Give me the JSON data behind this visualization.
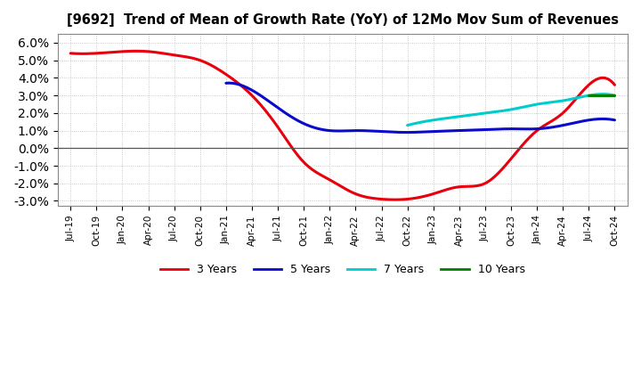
{
  "title": "[9692]  Trend of Mean of Growth Rate (YoY) of 12Mo Mov Sum of Revenues",
  "ylim": [
    -0.033,
    0.065
  ],
  "yticks": [
    -0.03,
    -0.02,
    -0.01,
    0.0,
    0.01,
    0.02,
    0.03,
    0.04,
    0.05,
    0.06
  ],
  "background_color": "#ffffff",
  "grid_color": "#bbbbbb",
  "series": {
    "3 Years": {
      "color": "#e8000d",
      "linewidth": 2.2,
      "data": [
        [
          0,
          0.054
        ],
        [
          1,
          0.054
        ],
        [
          2,
          0.055
        ],
        [
          3,
          0.055
        ],
        [
          4,
          0.053
        ],
        [
          5,
          0.05
        ],
        [
          6,
          0.042
        ],
        [
          7,
          0.03
        ],
        [
          8,
          0.012
        ],
        [
          9,
          -0.008
        ],
        [
          10,
          -0.018
        ],
        [
          11,
          -0.026
        ],
        [
          12,
          -0.029
        ],
        [
          13,
          -0.029
        ],
        [
          14,
          -0.026
        ],
        [
          15,
          -0.022
        ],
        [
          16,
          -0.02
        ],
        [
          17,
          -0.006
        ],
        [
          18,
          0.01
        ],
        [
          19,
          0.02
        ],
        [
          20,
          0.036
        ],
        [
          21,
          0.036
        ]
      ]
    },
    "5 Years": {
      "color": "#0a0acc",
      "linewidth": 2.2,
      "data": [
        [
          6,
          0.037
        ],
        [
          7,
          0.033
        ],
        [
          8,
          0.023
        ],
        [
          9,
          0.014
        ],
        [
          10,
          0.01
        ],
        [
          11,
          0.01
        ],
        [
          12,
          0.0095
        ],
        [
          13,
          0.009
        ],
        [
          14,
          0.0095
        ],
        [
          15,
          0.01
        ],
        [
          16,
          0.0105
        ],
        [
          17,
          0.011
        ],
        [
          18,
          0.011
        ],
        [
          19,
          0.013
        ],
        [
          20,
          0.016
        ],
        [
          21,
          0.016
        ]
      ]
    },
    "7 Years": {
      "color": "#00cccc",
      "linewidth": 2.2,
      "data": [
        [
          13,
          0.013
        ],
        [
          14,
          0.016
        ],
        [
          15,
          0.018
        ],
        [
          16,
          0.02
        ],
        [
          17,
          0.022
        ],
        [
          18,
          0.025
        ],
        [
          19,
          0.027
        ],
        [
          20,
          0.03
        ],
        [
          21,
          0.03
        ]
      ]
    },
    "10 Years": {
      "color": "#008000",
      "linewidth": 2.2,
      "data": [
        [
          20,
          0.03
        ],
        [
          21,
          0.03
        ]
      ]
    }
  },
  "legend_labels": [
    "3 Years",
    "5 Years",
    "7 Years",
    "10 Years"
  ],
  "legend_colors": [
    "#e8000d",
    "#0a0acc",
    "#00cccc",
    "#008000"
  ],
  "xtick_labels": [
    "Jul-19",
    "Oct-19",
    "Jan-20",
    "Apr-20",
    "Jul-20",
    "Oct-20",
    "Jan-21",
    "Apr-21",
    "Jul-21",
    "Oct-21",
    "Jan-22",
    "Apr-22",
    "Jul-22",
    "Oct-22",
    "Jan-23",
    "Apr-23",
    "Jul-23",
    "Oct-23",
    "Jan-24",
    "Apr-24",
    "Jul-24",
    "Oct-24"
  ]
}
